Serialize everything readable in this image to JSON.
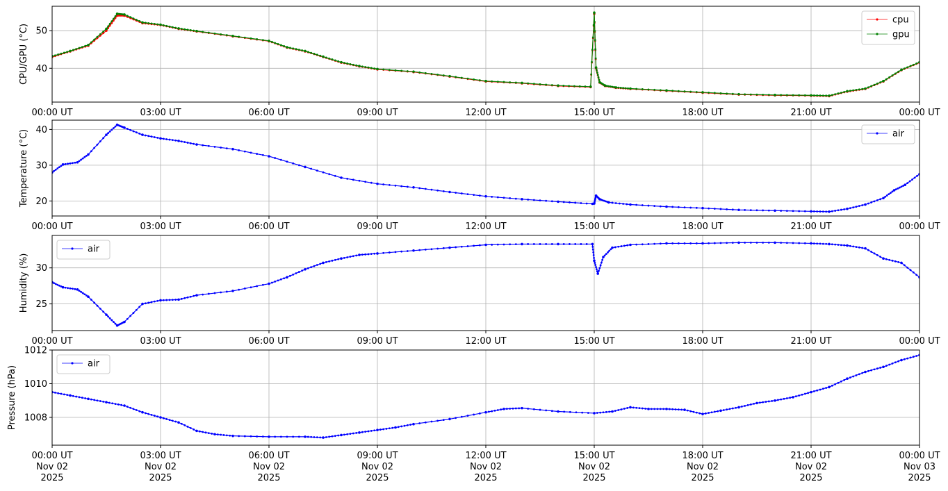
{
  "chart_data": [
    {
      "type": "line",
      "ylabel": "CPU/GPU (°C)",
      "ylim": [
        31,
        56.5
      ],
      "yticks": [
        40,
        50
      ],
      "grid": true,
      "legend_position": "top-right",
      "x_tick_labels": [
        "00:00 UT",
        "03:00 UT",
        "06:00 UT",
        "09:00 UT",
        "12:00 UT",
        "15:00 UT",
        "18:00 UT",
        "21:00 UT",
        "00:00 UT"
      ],
      "x": [
        0,
        0.5,
        1,
        1.5,
        1.8,
        2,
        2.5,
        3,
        3.5,
        4,
        5,
        6,
        6.5,
        7,
        7.5,
        8,
        8.5,
        9,
        10,
        11,
        12,
        13,
        14,
        14.9,
        15.0,
        15.05,
        15.15,
        15.3,
        15.6,
        16,
        17,
        18,
        19,
        20,
        21,
        21.5,
        22,
        22.5,
        23,
        23.5,
        24
      ],
      "series": [
        {
          "name": "cpu",
          "color": "#ff0000",
          "values": [
            43,
            44.5,
            46,
            50,
            54,
            54,
            52,
            51.5,
            50.5,
            49.8,
            48.5,
            47.2,
            45.5,
            44.5,
            43,
            41.5,
            40.5,
            39.7,
            39,
            37.8,
            36.5,
            36,
            35.3,
            35,
            54.5,
            40,
            36.2,
            35.3,
            34.8,
            34.5,
            34,
            33.5,
            33,
            32.8,
            32.7,
            32.6,
            33.8,
            34.5,
            36.5,
            39.5,
            41.5
          ]
        },
        {
          "name": "gpu",
          "color": "#008000",
          "values": [
            43.2,
            44.6,
            46.2,
            50.5,
            54.5,
            54.3,
            52.2,
            51.6,
            50.6,
            49.9,
            48.6,
            47.3,
            45.6,
            44.6,
            43.1,
            41.6,
            40.6,
            39.8,
            39.1,
            37.9,
            36.6,
            36.1,
            35.4,
            35.1,
            54.8,
            40.2,
            36.3,
            35.4,
            34.9,
            34.6,
            34.1,
            33.6,
            33.1,
            32.9,
            32.8,
            32.7,
            33.9,
            34.6,
            36.6,
            39.6,
            41.6
          ]
        }
      ]
    },
    {
      "type": "line",
      "ylabel": "Temperature (°C)",
      "ylim": [
        15.8,
        42.6
      ],
      "yticks": [
        20,
        30,
        40
      ],
      "grid": true,
      "legend_position": "top-right",
      "x_tick_labels": [
        "00:00 UT",
        "03:00 UT",
        "06:00 UT",
        "09:00 UT",
        "12:00 UT",
        "15:00 UT",
        "18:00 UT",
        "21:00 UT",
        "00:00 UT"
      ],
      "x": [
        0,
        0.3,
        0.7,
        1,
        1.5,
        1.8,
        2,
        2.5,
        3,
        3.5,
        4,
        5,
        6,
        7,
        8,
        9,
        10,
        11,
        12,
        13,
        14,
        14.95,
        15.0,
        15.05,
        15.15,
        15.4,
        16,
        17,
        18,
        19,
        20,
        21,
        21.5,
        22,
        22.5,
        23,
        23.3,
        23.6,
        24
      ],
      "series": [
        {
          "name": "air",
          "color": "#0000ff",
          "values": [
            28,
            30.2,
            30.8,
            33,
            38.5,
            41.3,
            40.5,
            38.5,
            37.5,
            36.8,
            35.8,
            34.5,
            32.5,
            29.5,
            26.5,
            24.8,
            23.8,
            22.5,
            21.3,
            20.5,
            19.8,
            19.2,
            19.3,
            21.5,
            20.5,
            19.6,
            19.0,
            18.4,
            18.0,
            17.5,
            17.3,
            17.1,
            17.0,
            17.8,
            19.0,
            20.8,
            23.0,
            24.5,
            27.5
          ]
        }
      ]
    },
    {
      "type": "line",
      "ylabel": "Humidity (%)",
      "ylim": [
        21.3,
        34.5
      ],
      "yticks": [
        25,
        30
      ],
      "grid": true,
      "legend_position": "top-left",
      "x_tick_labels": [
        "00:00 UT",
        "03:00 UT",
        "06:00 UT",
        "09:00 UT",
        "12:00 UT",
        "15:00 UT",
        "18:00 UT",
        "21:00 UT",
        "00:00 UT"
      ],
      "x": [
        0,
        0.3,
        0.7,
        1,
        1.5,
        1.8,
        2,
        2.5,
        3,
        3.5,
        4,
        5,
        6,
        6.5,
        7,
        7.5,
        8,
        8.5,
        9,
        10,
        11,
        12,
        13,
        14,
        14.95,
        15.0,
        15.1,
        15.25,
        15.5,
        16,
        17,
        18,
        19,
        20,
        21,
        21.5,
        22,
        22.5,
        23,
        23.5,
        24
      ],
      "series": [
        {
          "name": "air",
          "color": "#0000ff",
          "values": [
            28,
            27.3,
            27,
            26,
            23.5,
            22,
            22.5,
            25,
            25.5,
            25.6,
            26.2,
            26.8,
            27.8,
            28.7,
            29.8,
            30.7,
            31.3,
            31.8,
            32,
            32.4,
            32.8,
            33.2,
            33.3,
            33.3,
            33.3,
            31,
            29.2,
            31.5,
            32.8,
            33.2,
            33.4,
            33.4,
            33.5,
            33.5,
            33.4,
            33.3,
            33.1,
            32.7,
            31.3,
            30.7,
            28.7
          ]
        }
      ]
    },
    {
      "type": "line",
      "ylabel": "Pressure (hPa)",
      "ylim": [
        1006.35,
        1012
      ],
      "yticks": [
        1008,
        1010,
        1012
      ],
      "grid": true,
      "legend_position": "top-left",
      "x_tick_labels": [
        [
          "00:00 UT",
          "Nov 02",
          "2025"
        ],
        [
          "03:00 UT",
          "Nov 02",
          "2025"
        ],
        [
          "06:00 UT",
          "Nov 02",
          "2025"
        ],
        [
          "09:00 UT",
          "Nov 02",
          "2025"
        ],
        [
          "12:00 UT",
          "Nov 02",
          "2025"
        ],
        [
          "15:00 UT",
          "Nov 02",
          "2025"
        ],
        [
          "18:00 UT",
          "Nov 02",
          "2025"
        ],
        [
          "21:00 UT",
          "Nov 02",
          "2025"
        ],
        [
          "00:00 UT",
          "Nov 03",
          "2025"
        ]
      ],
      "x": [
        0,
        0.5,
        1,
        1.5,
        2,
        2.5,
        3,
        3.5,
        4,
        4.5,
        5,
        6,
        7,
        7.5,
        8,
        8.5,
        9,
        9.5,
        10,
        11,
        12,
        12.5,
        13,
        14,
        15,
        15.5,
        16,
        16.5,
        17,
        17.5,
        18,
        18.5,
        19,
        19.5,
        20,
        20.5,
        21,
        21.5,
        22,
        22.5,
        23,
        23.5,
        24
      ],
      "series": [
        {
          "name": "air",
          "color": "#0000ff",
          "values": [
            1009.5,
            1009.3,
            1009.1,
            1008.9,
            1008.7,
            1008.3,
            1008.0,
            1007.7,
            1007.2,
            1007.0,
            1006.9,
            1006.85,
            1006.85,
            1006.8,
            1006.95,
            1007.1,
            1007.25,
            1007.4,
            1007.6,
            1007.9,
            1008.3,
            1008.5,
            1008.55,
            1008.35,
            1008.25,
            1008.35,
            1008.6,
            1008.5,
            1008.5,
            1008.45,
            1008.2,
            1008.4,
            1008.6,
            1008.85,
            1009.0,
            1009.2,
            1009.5,
            1009.8,
            1010.3,
            1010.7,
            1011.0,
            1011.4,
            1011.7
          ]
        }
      ]
    }
  ]
}
